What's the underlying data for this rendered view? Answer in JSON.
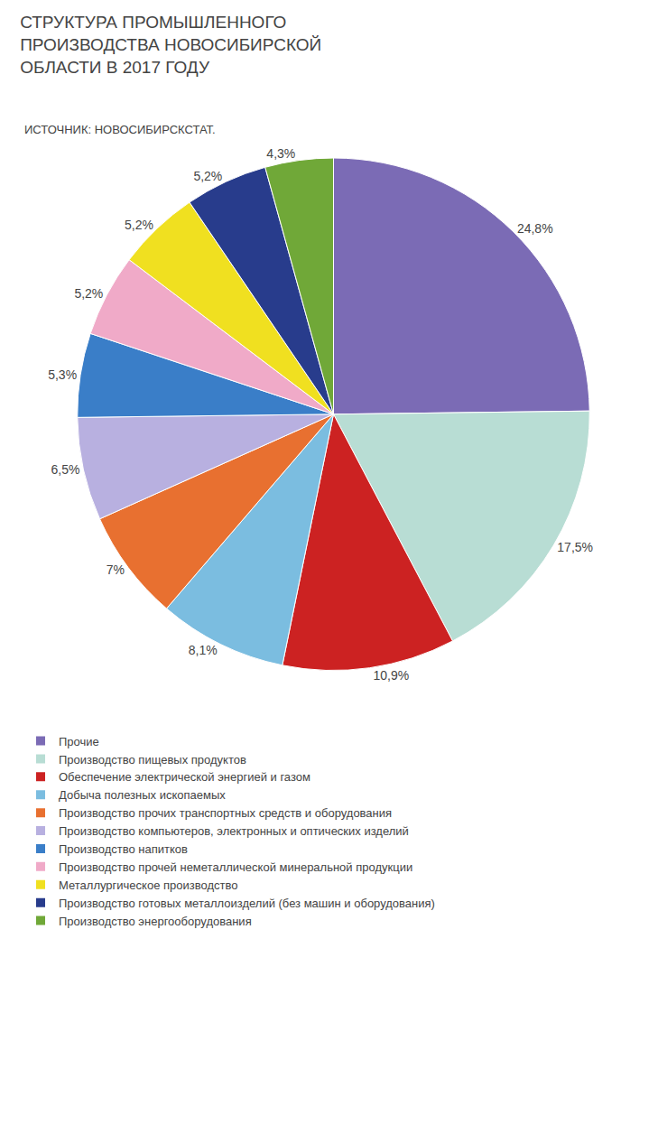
{
  "chart_data": {
    "type": "pie",
    "title": "СТРУКТУРА ПРОМЫШЛЕННОГО\nПРОИЗВОДСТВА НОВОСИБИРСКОЙ\nОБЛАСТИ В 2017 ГОДУ",
    "subtitle": "ИСТОЧНИК: НОВОСИБИРСКСТАТ.",
    "categories": [
      "Прочие",
      "Производство пищевых продуктов",
      "Обеспечение электрической энергией и газом",
      "Добыча полезных ископаемых",
      "Производство прочих транспортных средств и оборудования",
      "Производство компьютеров, электронных и оптических изделий",
      "Производство напитков",
      "Производство прочей неметаллической минеральной продукции",
      "Металлургическое производство",
      "Производство готовых металлоизделий (без машин и оборудования)",
      "Производство энергооборудования"
    ],
    "values": [
      24.8,
      17.5,
      10.9,
      8.1,
      7.0,
      6.5,
      5.3,
      5.2,
      5.2,
      5.2,
      4.3
    ],
    "value_labels": [
      "24,8%",
      "17,5%",
      "10,9%",
      "8,1%",
      "7%",
      "6,5%",
      "5,3%",
      "5,2%",
      "5,2%",
      "5,2%",
      "4,3%"
    ],
    "colors": [
      "#7b6bb5",
      "#b8ddd4",
      "#cc2222",
      "#7bbde0",
      "#e87030",
      "#b8b0e0",
      "#3a7ec8",
      "#f0aac8",
      "#f0e020",
      "#283c8c",
      "#70a838"
    ],
    "data_labels": true,
    "legend": "bottom"
  }
}
